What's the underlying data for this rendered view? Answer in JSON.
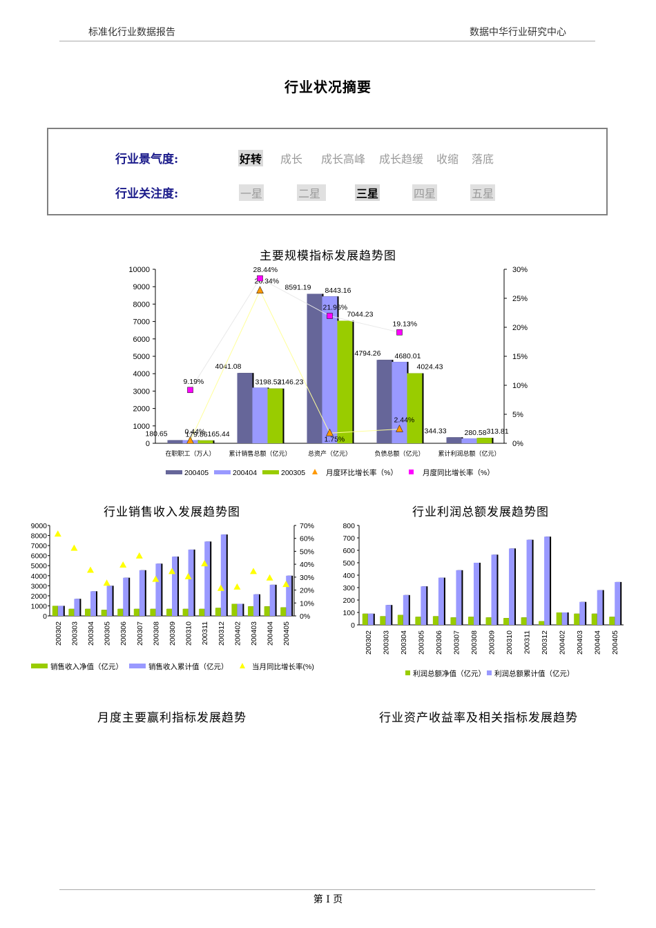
{
  "header": {
    "left": "标准化行业数据报告",
    "right": "数据中华行业研究中心"
  },
  "title": "行业状况摘要",
  "rating": {
    "climate_label": "行业景气度",
    "climate_options": [
      "好转",
      "成长",
      "成长高峰",
      "成长趋缓",
      "收缩",
      "落底"
    ],
    "climate_selected": "好转",
    "attention_label": "行业关注度",
    "attention_options": [
      "一星",
      "二星",
      "三星",
      "四星",
      "五星"
    ],
    "attention_selected": "三星"
  },
  "section_titles": {
    "chart1": "主要规模指标发展趋势图",
    "chart2": "行业销售收入发展趋势图",
    "chart3": "行业利润总额发展趋势图",
    "bottom_left": "月度主要赢利指标发展趋势",
    "bottom_right": "行业资产收益率及相关指标发展趋势"
  },
  "footer": {
    "page": "第 I 页"
  },
  "colors": {
    "s1": "#666699",
    "s2": "#9999ff",
    "s3": "#99cc00",
    "orange": "#ff9900",
    "magenta": "#ff00ff",
    "yellow": "#ffff00",
    "accent": "#1a1a8a"
  },
  "chart_data": [
    {
      "type": "bar",
      "categories": [
        "在职职工（万人）",
        "累计销售总额（亿元）",
        "总资产（亿元）",
        "负债总额（亿元）",
        "累计利润总额（亿元）"
      ],
      "series": [
        {
          "name": "200405",
          "values": [
            180.65,
            4041.08,
            8591.19,
            4794.26,
            344.33
          ]
        },
        {
          "name": "200404",
          "values": [
            179.86,
            3198.52,
            8443.16,
            4680.01,
            280.58
          ]
        },
        {
          "name": "200305",
          "values": [
            165.44,
            3146.23,
            7044.23,
            4024.43,
            313.81
          ]
        }
      ],
      "secondary": [
        {
          "name": "月度环比增长率（%）",
          "values": [
            0.44,
            26.34,
            1.75,
            2.44,
            null
          ]
        },
        {
          "name": "月度同比增长率（%）",
          "values": [
            9.19,
            28.44,
            21.96,
            19.13,
            null
          ]
        }
      ],
      "ylim": [
        0,
        10000
      ],
      "y_ticks": [
        "0",
        "1000",
        "2000",
        "3000",
        "4000",
        "5000",
        "6000",
        "7000",
        "8000",
        "9000",
        "10000"
      ],
      "y2lim": [
        0,
        30
      ],
      "y2_ticks": [
        "0%",
        "5%",
        "10%",
        "15%",
        "20%",
        "25%",
        "30%"
      ],
      "labels": {
        "primary": [
          "180.65",
          "179.86",
          "165.44",
          "4041.08",
          "3198.52",
          "3146.23",
          "8591.19",
          "8443.16",
          "7044.23",
          "4794.26",
          "4680.01",
          "4024.43",
          "344.33",
          "280.58",
          "313.81"
        ],
        "mom": [
          "0.44%",
          "26.34%",
          "1.75%",
          "2.44%"
        ],
        "yoy": [
          "9.19%",
          "28.44%",
          "21.96%",
          "19.13%"
        ]
      },
      "legend": "bottom"
    },
    {
      "type": "bar",
      "categories": [
        "200302",
        "200303",
        "200304",
        "200305",
        "200306",
        "200307",
        "200308",
        "200309",
        "200310",
        "200311",
        "200312",
        "200402",
        "200403",
        "200404",
        "200405"
      ],
      "series": [
        {
          "name": "销售收入净值（亿元）",
          "values": [
            1000,
            700,
            700,
            600,
            700,
            700,
            700,
            700,
            700,
            700,
            800,
            1200,
            950,
            950,
            850
          ]
        },
        {
          "name": "销售收入累计值（亿元）",
          "values": [
            1000,
            1700,
            2450,
            3000,
            3800,
            4550,
            5200,
            5900,
            6600,
            7400,
            8100,
            1200,
            2150,
            3100,
            4000
          ]
        },
        {
          "name": "当月同比增长率(%)",
          "values": [
            63,
            52,
            35,
            25,
            39,
            46,
            28,
            34,
            30,
            40,
            21,
            22,
            34,
            29,
            24
          ]
        }
      ],
      "ylim": [
        0,
        9000
      ],
      "y_ticks": [
        "0",
        "1000",
        "2000",
        "3000",
        "4000",
        "5000",
        "6000",
        "7000",
        "8000",
        "9000"
      ],
      "y2lim": [
        0,
        70
      ],
      "y2_ticks": [
        "0%",
        "10%",
        "20%",
        "30%",
        "40%",
        "50%",
        "60%",
        "70%"
      ],
      "legend": "bottom"
    },
    {
      "type": "bar",
      "categories": [
        "200302",
        "200303",
        "200304",
        "200305",
        "200306",
        "200307",
        "200308",
        "200309",
        "200310",
        "200311",
        "200312",
        "200402",
        "200403",
        "200404",
        "200405"
      ],
      "series": [
        {
          "name": "利润总额净值（亿元）",
          "values": [
            90,
            70,
            80,
            65,
            70,
            60,
            65,
            60,
            55,
            60,
            30,
            100,
            90,
            90,
            65
          ]
        },
        {
          "name": "利润总额累计值（亿元）",
          "values": [
            90,
            160,
            240,
            310,
            380,
            440,
            500,
            565,
            615,
            685,
            710,
            100,
            185,
            280,
            345
          ]
        }
      ],
      "ylim": [
        0,
        800
      ],
      "y_ticks": [
        "0",
        "100",
        "200",
        "300",
        "400",
        "500",
        "600",
        "700",
        "800"
      ],
      "legend": "bottom"
    }
  ]
}
